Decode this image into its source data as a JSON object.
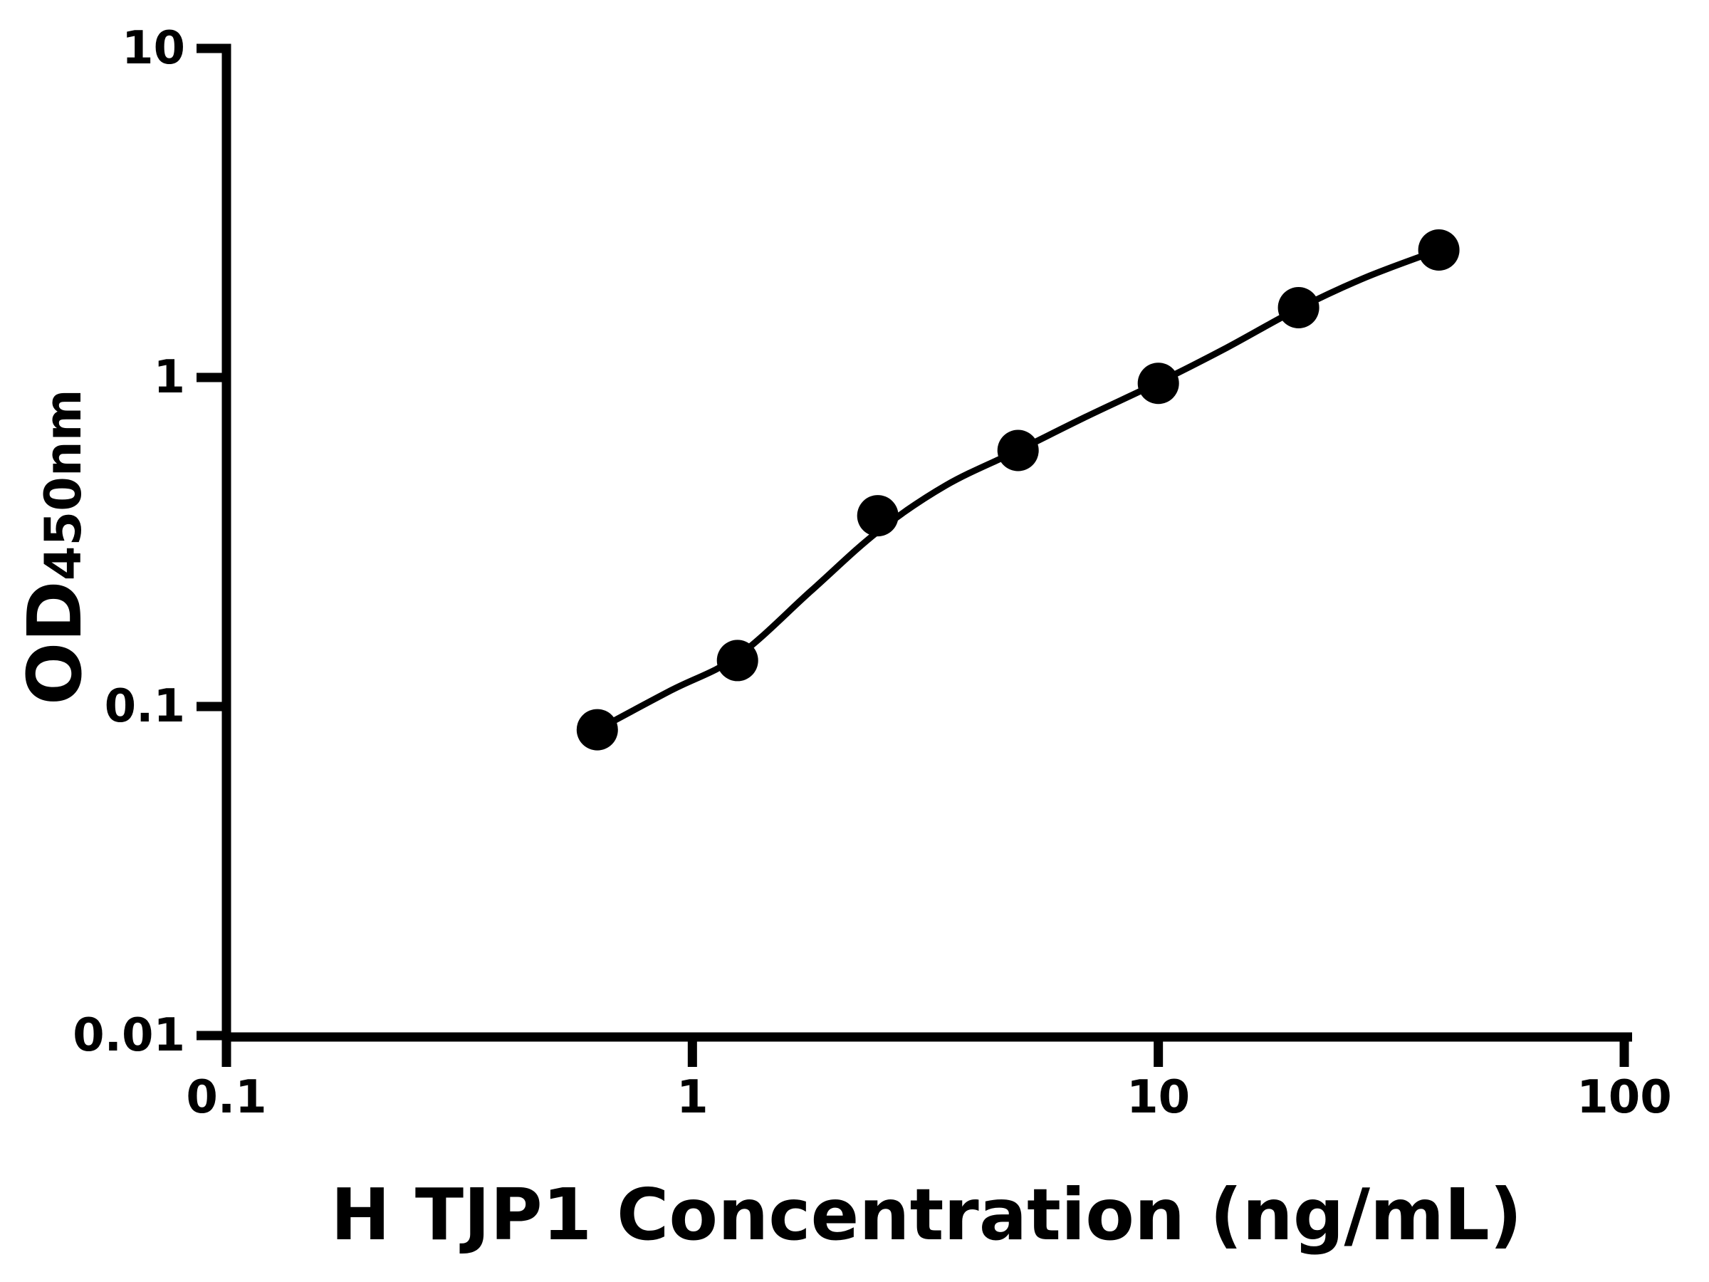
{
  "figure": {
    "background": "#ffffff",
    "ink_color": "#000000"
  },
  "chart_data": {
    "type": "scatter",
    "title": "",
    "xlabel": "H TJP1 Concentration (ng/mL)",
    "ylabel": "OD450nm",
    "ylabel_main": "OD",
    "ylabel_sub": "450nm",
    "x_scale": "log",
    "y_scale": "log",
    "xlim": [
      0.1,
      100
    ],
    "ylim": [
      0.01,
      10
    ],
    "grid": false,
    "legend_position": "none",
    "x_ticks": [
      {
        "value": 0.1,
        "label": "0.1"
      },
      {
        "value": 1,
        "label": "1"
      },
      {
        "value": 10,
        "label": "10"
      },
      {
        "value": 100,
        "label": "100"
      }
    ],
    "y_ticks": [
      {
        "value": 10,
        "label": "10"
      },
      {
        "value": 1,
        "label": "1"
      },
      {
        "value": 0.1,
        "label": "0.1"
      },
      {
        "value": 0.01,
        "label": "0.01"
      }
    ],
    "series": [
      {
        "name": "standard-points",
        "type": "scatter",
        "marker": "circle",
        "color": "#000000",
        "x": [
          0.625,
          1.25,
          2.5,
          5,
          10,
          20,
          40
        ],
        "y": [
          0.085,
          0.138,
          0.38,
          0.6,
          0.96,
          1.63,
          2.44
        ]
      },
      {
        "name": "fit-curve",
        "type": "line",
        "color": "#000000",
        "x": [
          0.625,
          0.9,
          1.25,
          1.8,
          2.5,
          3.5,
          5,
          7,
          10,
          14,
          20,
          28,
          40
        ],
        "y": [
          0.085,
          0.112,
          0.142,
          0.225,
          0.34,
          0.47,
          0.6,
          0.76,
          0.965,
          1.23,
          1.62,
          2.02,
          2.44
        ]
      }
    ]
  }
}
